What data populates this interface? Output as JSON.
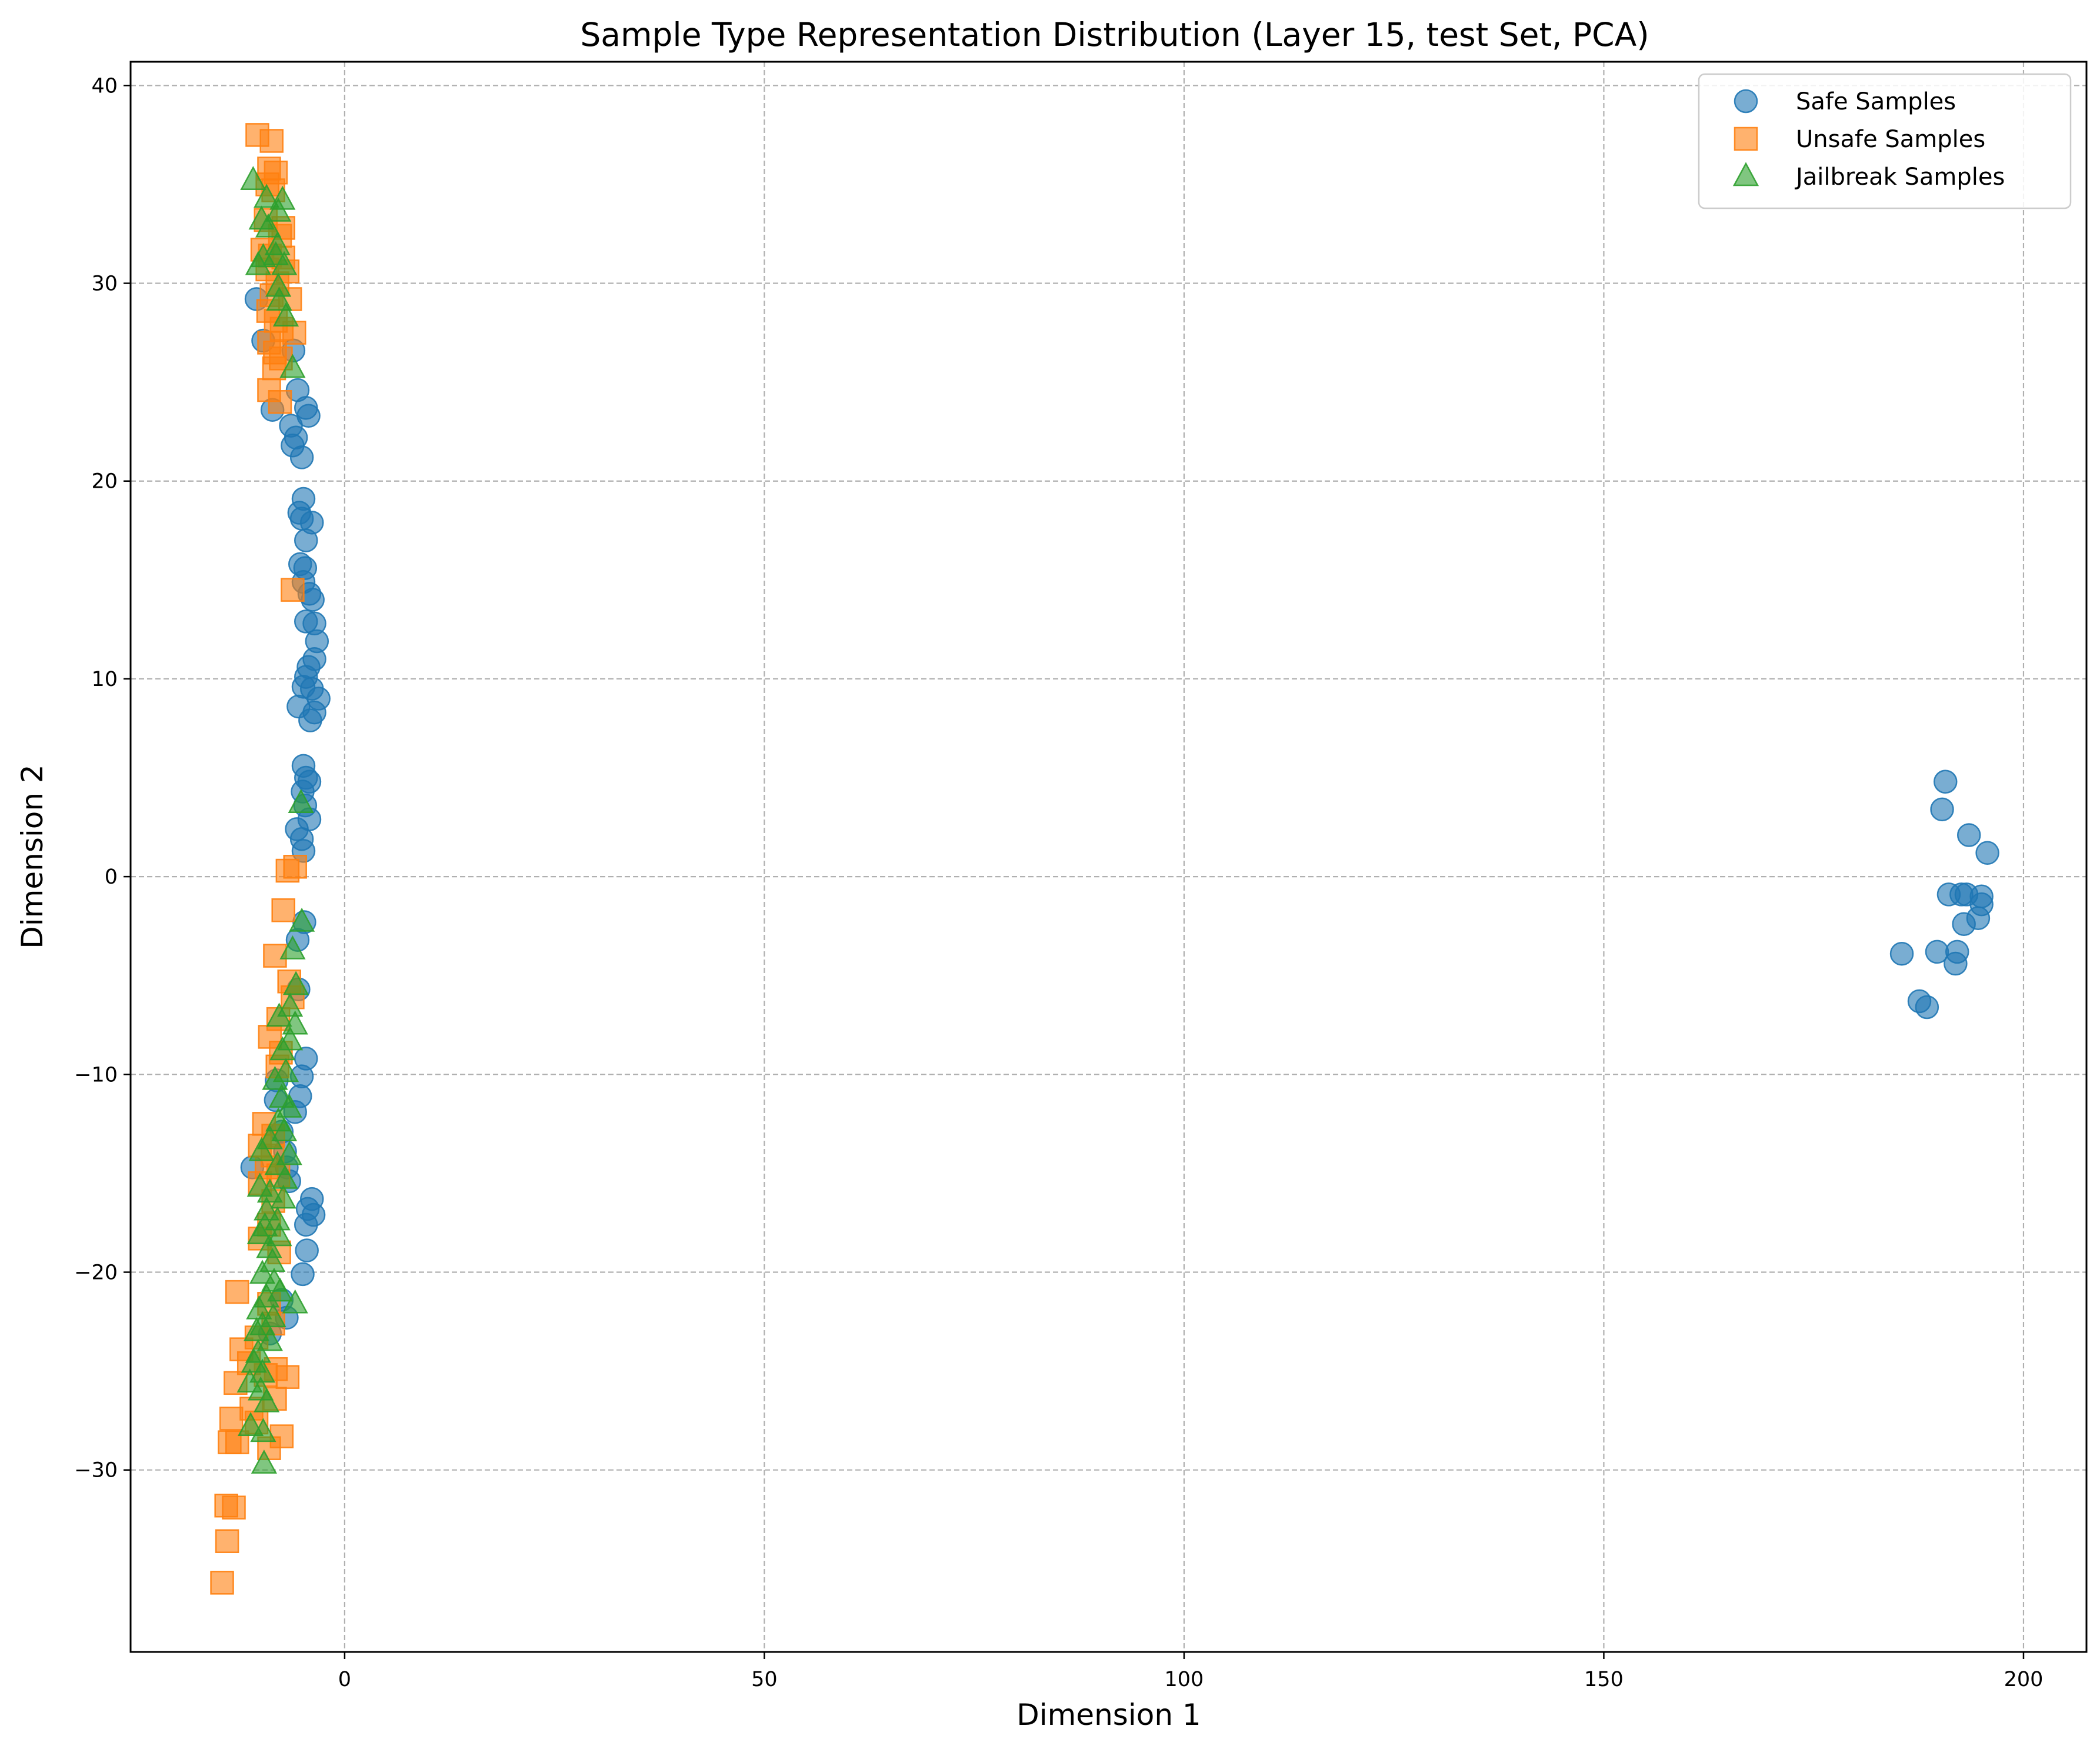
{
  "chart_data": {
    "type": "scatter",
    "title": "Sample Type Representation Distribution (Layer 15, test Set, PCA)",
    "xlabel": "Dimension 1",
    "ylabel": "Dimension 2",
    "xlim": [
      -25.5,
      207.5
    ],
    "ylim": [
      -39.2,
      41.2
    ],
    "xticks": [
      0,
      50,
      100,
      150,
      200
    ],
    "yticks": [
      -30,
      -20,
      -10,
      0,
      10,
      20,
      30,
      40
    ],
    "xtick_labels": [
      "0",
      "50",
      "100",
      "150",
      "200"
    ],
    "ytick_labels": [
      "−30",
      "−20",
      "−10",
      "0",
      "10",
      "20",
      "30",
      "40"
    ],
    "grid": true,
    "legend_position": "upper right",
    "series": [
      {
        "name": "Safe Samples",
        "marker": "circle",
        "color": "#1f77b4",
        "points": [
          [
            -10.5,
            29.2
          ],
          [
            -9.7,
            27.1
          ],
          [
            -8.6,
            23.6
          ],
          [
            -6.1,
            26.6
          ],
          [
            -5.6,
            24.6
          ],
          [
            -6.4,
            22.8
          ],
          [
            -5.8,
            22.2
          ],
          [
            -6.2,
            21.8
          ],
          [
            -5.1,
            21.2
          ],
          [
            -4.6,
            23.7
          ],
          [
            -4.3,
            23.3
          ],
          [
            -4.9,
            19.1
          ],
          [
            -5.4,
            18.4
          ],
          [
            -5.1,
            18.1
          ],
          [
            -3.9,
            17.9
          ],
          [
            -4.6,
            17.0
          ],
          [
            -5.3,
            15.8
          ],
          [
            -4.7,
            15.6
          ],
          [
            -4.9,
            14.9
          ],
          [
            -4.2,
            14.3
          ],
          [
            -3.8,
            14.0
          ],
          [
            -4.6,
            12.9
          ],
          [
            -3.6,
            12.8
          ],
          [
            -3.3,
            11.9
          ],
          [
            -3.6,
            11.0
          ],
          [
            -4.3,
            10.6
          ],
          [
            -4.6,
            10.1
          ],
          [
            -4.9,
            9.6
          ],
          [
            -3.9,
            9.5
          ],
          [
            -3.1,
            9.0
          ],
          [
            -5.5,
            8.6
          ],
          [
            -3.6,
            8.3
          ],
          [
            -4.1,
            7.9
          ],
          [
            -4.9,
            5.6
          ],
          [
            -4.6,
            5.0
          ],
          [
            -4.2,
            4.8
          ],
          [
            -5.0,
            4.3
          ],
          [
            -4.7,
            3.6
          ],
          [
            -4.2,
            2.9
          ],
          [
            -5.7,
            2.4
          ],
          [
            -5.1,
            1.9
          ],
          [
            -4.9,
            1.3
          ],
          [
            -4.8,
            -2.3
          ],
          [
            -5.6,
            -3.2
          ],
          [
            -5.5,
            -5.7
          ],
          [
            -4.6,
            -9.2
          ],
          [
            -5.1,
            -10.1
          ],
          [
            -5.3,
            -11.1
          ],
          [
            -5.9,
            -11.9
          ],
          [
            -8.1,
            -10.3
          ],
          [
            -8.2,
            -11.3
          ],
          [
            -7.5,
            -12.9
          ],
          [
            -7.1,
            -13.9
          ],
          [
            -6.9,
            -14.7
          ],
          [
            -11.0,
            -14.7
          ],
          [
            -6.6,
            -15.4
          ],
          [
            -3.9,
            -16.3
          ],
          [
            -4.4,
            -16.8
          ],
          [
            -3.7,
            -17.1
          ],
          [
            -4.6,
            -17.6
          ],
          [
            -4.5,
            -18.9
          ],
          [
            -5.0,
            -20.1
          ],
          [
            -7.5,
            -21.4
          ],
          [
            -6.9,
            -22.3
          ],
          [
            -8.9,
            -23.1
          ],
          [
            185.5,
            -3.9
          ],
          [
            187.6,
            -6.3
          ],
          [
            188.5,
            -6.6
          ],
          [
            189.7,
            -3.8
          ],
          [
            190.3,
            3.4
          ],
          [
            190.7,
            4.8
          ],
          [
            191.1,
            -0.9
          ],
          [
            192.1,
            -3.8
          ],
          [
            191.9,
            -4.4
          ],
          [
            192.6,
            -0.9
          ],
          [
            192.9,
            -2.4
          ],
          [
            193.2,
            -0.9
          ],
          [
            193.5,
            2.1
          ],
          [
            194.6,
            -2.1
          ],
          [
            195.0,
            -1.4
          ],
          [
            195.0,
            -1.0
          ],
          [
            195.7,
            1.2
          ]
        ]
      },
      {
        "name": "Unsafe Samples",
        "marker": "square",
        "color": "#ff7f0e",
        "points": [
          [
            -10.4,
            37.5
          ],
          [
            -8.7,
            37.2
          ],
          [
            -9.0,
            35.8
          ],
          [
            -8.2,
            35.6
          ],
          [
            -9.2,
            35.0
          ],
          [
            -8.5,
            34.7
          ],
          [
            -9.4,
            33.2
          ],
          [
            -7.7,
            32.4
          ],
          [
            -7.3,
            32.8
          ],
          [
            -9.8,
            31.7
          ],
          [
            -8.9,
            31.4
          ],
          [
            -7.3,
            31.3
          ],
          [
            -9.2,
            30.7
          ],
          [
            -6.8,
            30.6
          ],
          [
            -8.0,
            30.0
          ],
          [
            -8.7,
            29.4
          ],
          [
            -6.5,
            29.2
          ],
          [
            -9.1,
            28.6
          ],
          [
            -8.2,
            28.1
          ],
          [
            -7.5,
            27.7
          ],
          [
            -6.0,
            27.5
          ],
          [
            -9.0,
            27.0
          ],
          [
            -8.3,
            26.5
          ],
          [
            -7.6,
            26.2
          ],
          [
            -8.4,
            25.7
          ],
          [
            -9.0,
            24.6
          ],
          [
            -7.7,
            24.0
          ],
          [
            -6.2,
            14.5
          ],
          [
            -5.9,
            0.5
          ],
          [
            -6.8,
            0.3
          ],
          [
            -7.3,
            -1.7
          ],
          [
            -8.3,
            -4.0
          ],
          [
            -6.6,
            -5.3
          ],
          [
            -6.2,
            -6.1
          ],
          [
            -7.9,
            -7.2
          ],
          [
            -8.9,
            -8.1
          ],
          [
            -7.6,
            -8.9
          ],
          [
            -8.0,
            -9.6
          ],
          [
            -9.6,
            -12.5
          ],
          [
            -8.5,
            -13.1
          ],
          [
            -10.1,
            -13.6
          ],
          [
            -8.6,
            -14.1
          ],
          [
            -9.3,
            -14.7
          ],
          [
            -7.9,
            -15.1
          ],
          [
            -10.1,
            -15.5
          ],
          [
            -8.5,
            -16.4
          ],
          [
            -9.0,
            -17.6
          ],
          [
            -10.1,
            -18.3
          ],
          [
            -7.8,
            -19.0
          ],
          [
            -12.8,
            -21.0
          ],
          [
            -9.0,
            -21.6
          ],
          [
            -8.5,
            -22.6
          ],
          [
            -10.5,
            -23.3
          ],
          [
            -12.3,
            -23.9
          ],
          [
            -11.4,
            -24.6
          ],
          [
            -8.2,
            -24.9
          ],
          [
            -9.4,
            -25.2
          ],
          [
            -6.8,
            -25.3
          ],
          [
            -13.0,
            -25.6
          ],
          [
            -8.3,
            -26.4
          ],
          [
            -11.1,
            -26.9
          ],
          [
            -13.5,
            -27.4
          ],
          [
            -10.5,
            -27.6
          ],
          [
            -7.5,
            -28.3
          ],
          [
            -13.7,
            -28.6
          ],
          [
            -12.8,
            -28.6
          ],
          [
            -9.0,
            -28.9
          ],
          [
            -14.1,
            -31.8
          ],
          [
            -13.2,
            -31.9
          ],
          [
            -14.0,
            -33.6
          ],
          [
            -14.6,
            -35.7
          ]
        ]
      },
      {
        "name": "Jailbreak Samples",
        "marker": "triangle",
        "color": "#2ca02c",
        "points": [
          [
            -10.9,
            35.2
          ],
          [
            -9.3,
            34.3
          ],
          [
            -7.4,
            34.2
          ],
          [
            -7.9,
            33.6
          ],
          [
            -9.9,
            33.2
          ],
          [
            -9.1,
            32.8
          ],
          [
            -8.0,
            31.9
          ],
          [
            -9.7,
            31.3
          ],
          [
            -10.3,
            30.9
          ],
          [
            -8.2,
            31.4
          ],
          [
            -7.2,
            30.9
          ],
          [
            -7.9,
            29.8
          ],
          [
            -7.8,
            29.1
          ],
          [
            -7.0,
            28.3
          ],
          [
            -6.2,
            25.7
          ],
          [
            -5.2,
            3.7
          ],
          [
            -5.1,
            -2.3
          ],
          [
            -6.2,
            -3.7
          ],
          [
            -5.8,
            -5.5
          ],
          [
            -6.5,
            -6.6
          ],
          [
            -7.8,
            -7.1
          ],
          [
            -5.9,
            -7.5
          ],
          [
            -6.5,
            -8.3
          ],
          [
            -7.4,
            -8.8
          ],
          [
            -7.0,
            -9.9
          ],
          [
            -8.3,
            -10.3
          ],
          [
            -7.5,
            -11.2
          ],
          [
            -6.6,
            -11.7
          ],
          [
            -7.9,
            -12.4
          ],
          [
            -7.2,
            -12.9
          ],
          [
            -8.9,
            -13.3
          ],
          [
            -9.9,
            -13.9
          ],
          [
            -6.6,
            -14.1
          ],
          [
            -8.0,
            -14.6
          ],
          [
            -7.1,
            -15.3
          ],
          [
            -10.1,
            -15.7
          ],
          [
            -8.9,
            -16.0
          ],
          [
            -7.3,
            -16.3
          ],
          [
            -9.3,
            -16.9
          ],
          [
            -8.0,
            -17.4
          ],
          [
            -9.5,
            -17.7
          ],
          [
            -10.1,
            -18.1
          ],
          [
            -7.8,
            -18.2
          ],
          [
            -9.0,
            -18.8
          ],
          [
            -8.6,
            -19.5
          ],
          [
            -9.8,
            -20.1
          ],
          [
            -8.4,
            -20.5
          ],
          [
            -7.7,
            -21.0
          ],
          [
            -9.3,
            -21.3
          ],
          [
            -10.2,
            -21.9
          ],
          [
            -5.9,
            -21.6
          ],
          [
            -8.5,
            -22.3
          ],
          [
            -9.8,
            -22.7
          ],
          [
            -10.5,
            -23.0
          ],
          [
            -8.9,
            -23.5
          ],
          [
            -10.3,
            -24.1
          ],
          [
            -10.8,
            -24.6
          ],
          [
            -9.8,
            -25.1
          ],
          [
            -11.3,
            -25.6
          ],
          [
            -10.0,
            -26.0
          ],
          [
            -9.3,
            -26.6
          ],
          [
            -11.2,
            -27.8
          ],
          [
            -9.7,
            -28.1
          ],
          [
            -9.6,
            -29.7
          ]
        ]
      }
    ]
  }
}
